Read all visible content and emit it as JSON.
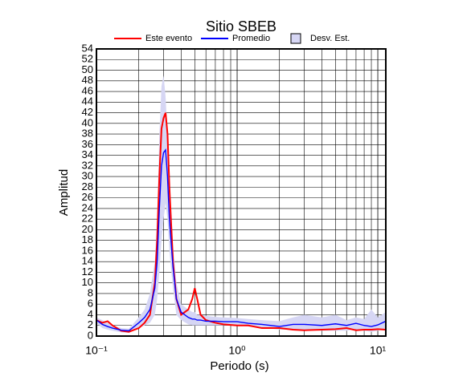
{
  "chart_data": {
    "type": "line",
    "title": "Sitio SBEB",
    "xlabel": "Periodo (s)",
    "ylabel": "Amplitud",
    "log_x": true,
    "grid": true,
    "xlim": [
      0.1,
      11.4
    ],
    "ylim": [
      0,
      54
    ],
    "xticks": [
      {
        "value": 0.1,
        "label": "10⁻¹"
      },
      {
        "value": 1,
        "label": "10⁰"
      },
      {
        "value": 10,
        "label": "10¹"
      }
    ],
    "xminor_ticks": [
      0.2,
      0.3,
      0.4,
      0.5,
      0.6,
      0.7,
      0.8,
      0.9,
      2,
      3,
      4,
      5,
      6,
      7,
      8,
      9
    ],
    "yticks": [
      0,
      2,
      4,
      6,
      8,
      10,
      12,
      14,
      16,
      18,
      20,
      22,
      24,
      26,
      28,
      30,
      32,
      34,
      36,
      38,
      40,
      42,
      44,
      46,
      48,
      50,
      52,
      54
    ],
    "x": [
      0.1,
      0.11,
      0.12,
      0.13,
      0.15,
      0.17,
      0.2,
      0.22,
      0.24,
      0.26,
      0.27,
      0.28,
      0.29,
      0.3,
      0.31,
      0.32,
      0.33,
      0.35,
      0.37,
      0.4,
      0.45,
      0.48,
      0.5,
      0.52,
      0.55,
      0.6,
      0.7,
      0.8,
      1,
      1.2,
      1.5,
      2,
      2.5,
      3,
      4,
      5,
      6,
      7,
      8,
      9,
      10,
      11.4
    ],
    "band": {
      "name": "Desv. Est.",
      "color": "#d6d6f4",
      "upper": [
        3.5,
        3,
        2.5,
        2,
        1.5,
        1.4,
        3.5,
        5,
        8,
        14,
        22,
        38,
        47,
        49,
        45,
        38,
        28,
        17,
        10,
        6,
        5,
        4.5,
        4.5,
        4,
        4,
        3.8,
        3.6,
        3.5,
        3.4,
        3.2,
        3,
        2.8,
        3.5,
        4,
        3.5,
        4,
        3,
        3.5,
        3.2,
        5,
        3.5,
        4.5
      ],
      "lower": [
        2.5,
        1.5,
        1.2,
        1,
        0.7,
        0.6,
        1.5,
        2,
        2.5,
        4,
        7,
        12,
        18,
        22,
        25,
        22,
        16,
        9,
        4,
        3,
        2.2,
        2,
        2,
        2,
        2,
        2,
        2,
        2,
        2,
        1.8,
        1.6,
        1.2,
        1.2,
        1.2,
        1,
        1,
        1,
        1.3,
        1,
        0.8,
        1,
        1.5
      ]
    },
    "series": [
      {
        "name": "Este evento",
        "color": "#ff0000",
        "values": [
          3,
          2.5,
          2.8,
          2,
          1,
          0.8,
          1.5,
          2.5,
          4,
          10,
          18,
          30,
          39,
          41,
          42,
          38,
          28,
          14,
          7,
          4,
          5,
          7,
          9,
          7,
          4,
          3,
          2.5,
          2.2,
          2,
          2,
          1.5,
          1.5,
          1.2,
          1.1,
          1.2,
          1.3,
          1.5,
          1.1,
          1.2,
          1.2,
          1.3,
          1.2
        ]
      },
      {
        "name": "Promedio",
        "color": "#0000ff",
        "values": [
          3,
          2.2,
          1.8,
          1.5,
          1.1,
          1,
          2.5,
          3.5,
          5,
          9,
          14,
          24,
          32,
          34.5,
          35,
          30,
          22,
          13,
          7,
          4.5,
          3.5,
          3.2,
          3.2,
          3,
          3,
          2.8,
          2.8,
          2.7,
          2.7,
          2.4,
          2.2,
          1.8,
          2.2,
          2.2,
          2,
          2.3,
          2,
          2.4,
          2,
          1.8,
          2.1,
          2.8
        ]
      }
    ]
  }
}
